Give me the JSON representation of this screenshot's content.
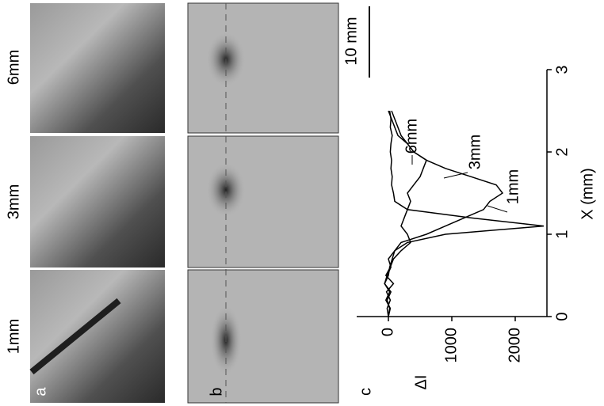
{
  "figure": {
    "panel_letters": [
      "a",
      "b",
      "c"
    ],
    "column_labels": [
      "6mm",
      "3mm",
      "1mm"
    ],
    "scale_bar": "10 mm"
  },
  "chart_data": {
    "type": "line",
    "x_label": "X (mm)",
    "y_label": "ΔI",
    "x": [
      0,
      0.1,
      0.2,
      0.3,
      0.4,
      0.5,
      0.6,
      0.7,
      0.8,
      0.9,
      1.0,
      1.1,
      1.2,
      1.3,
      1.4,
      1.5,
      1.6,
      1.7,
      1.8,
      1.9,
      2.0,
      2.1,
      2.2,
      2.3,
      2.4,
      2.5
    ],
    "xlim": [
      0,
      3
    ],
    "xticks": [
      0,
      1,
      2,
      3
    ],
    "ylim": [
      -500,
      2500
    ],
    "yticks": [
      0,
      1000,
      2000
    ],
    "series": [
      {
        "name": "1mm",
        "color": "#000000",
        "values": [
          0,
          30,
          -40,
          20,
          -60,
          -20,
          40,
          0,
          100,
          300,
          900,
          2450,
          1300,
          300,
          100,
          80,
          50,
          60,
          40,
          50,
          30,
          40,
          60,
          30,
          40,
          20
        ]
      },
      {
        "name": "3mm",
        "color": "#000000",
        "values": [
          0,
          20,
          -20,
          40,
          -60,
          0,
          20,
          60,
          100,
          200,
          600,
          900,
          1200,
          1500,
          1600,
          1800,
          1700,
          1300,
          900,
          600,
          400,
          300,
          200,
          150,
          100,
          50
        ]
      },
      {
        "name": "6mm",
        "color": "#000000",
        "values": [
          0,
          -20,
          30,
          -30,
          80,
          -40,
          30,
          80,
          200,
          350,
          300,
          200,
          250,
          300,
          350,
          300,
          400,
          500,
          550,
          600,
          400,
          300,
          150,
          100,
          50,
          0
        ]
      }
    ]
  }
}
